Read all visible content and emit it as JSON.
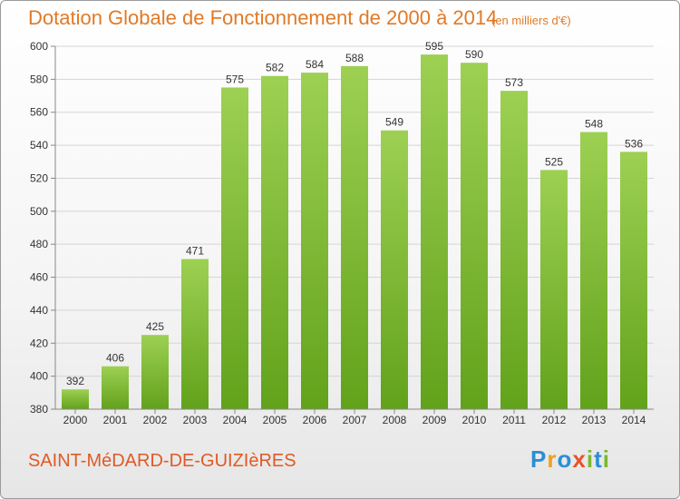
{
  "header": {
    "title": "Dotation Globale de Fonctionnement de 2000 à 2014",
    "unit": "(en milliers d'€)"
  },
  "footer": {
    "commune": "SAINT-MéDARD-DE-GUIZIèRES",
    "logo": [
      "P",
      "r",
      "o",
      "x",
      "i",
      "t",
      "i"
    ]
  },
  "colors": {
    "bar_light": "#9dd053",
    "bar_dark": "#62a21b",
    "title": "#e07a27",
    "grid": "#d5d5d5"
  },
  "chart_data": {
    "type": "bar",
    "title": "Dotation Globale de Fonctionnement de 2000 à 2014",
    "xlabel": "",
    "ylabel": "",
    "categories": [
      "2000",
      "2001",
      "2002",
      "2003",
      "2004",
      "2005",
      "2006",
      "2007",
      "2008",
      "2009",
      "2010",
      "2011",
      "2012",
      "2013",
      "2014"
    ],
    "values": [
      392,
      406,
      425,
      471,
      575,
      582,
      584,
      588,
      549,
      595,
      590,
      573,
      525,
      548,
      536
    ],
    "ylim": [
      380,
      600
    ],
    "yticks": [
      380,
      400,
      420,
      440,
      460,
      480,
      500,
      520,
      540,
      560,
      580,
      600
    ],
    "grid": true,
    "data_labels": true
  }
}
